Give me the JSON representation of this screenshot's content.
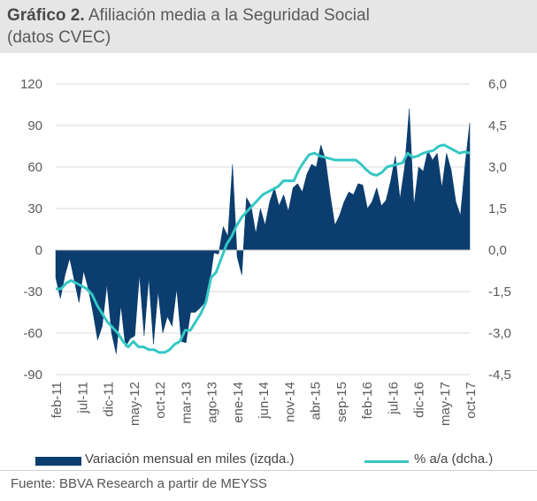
{
  "header": {
    "title_bold": "Gráfico 2.",
    "title_rest": " Afiliación media a la Seguridad Social",
    "subtitle": "(datos CVEC)"
  },
  "footer": {
    "source": "Fuente: BBVA Research a partir de MEYSS"
  },
  "colors": {
    "area": "#0b3d6e",
    "line": "#35c7c4",
    "grid": "#d9d9d9",
    "axis_text": "#5a5a5a"
  },
  "chart_data": {
    "type": "area+line",
    "left_axis": {
      "ticks": [
        "120",
        "90",
        "60",
        "30",
        "0",
        "-30",
        "-60",
        "-90"
      ],
      "range": [
        -90,
        120
      ]
    },
    "right_axis": {
      "ticks": [
        "6,0",
        "4,5",
        "3,0",
        "1,5",
        "0,0",
        "-1,5",
        "-3,0",
        "-4,5"
      ],
      "range": [
        -4.5,
        6.0
      ]
    },
    "x_labels": [
      "feb-11",
      "jul-11",
      "dic-11",
      "may-12",
      "oct-12",
      "mar-13",
      "ago-13",
      "ene-14",
      "jun-14",
      "nov-14",
      "abr-15",
      "sep-15",
      "feb-16",
      "jul-16",
      "dic-16",
      "may-17",
      "oct-17"
    ],
    "grid": true,
    "legend_position": "bottom",
    "series": [
      {
        "name": "Variación mensual en miles (izqda.)",
        "kind": "area",
        "axis": "left",
        "values": [
          -20,
          -35,
          -18,
          -6,
          -22,
          -38,
          -15,
          -28,
          -45,
          -65,
          -55,
          -25,
          -60,
          -75,
          -40,
          -70,
          -64,
          -62,
          -18,
          -62,
          -20,
          -68,
          -30,
          -60,
          -48,
          -55,
          -28,
          -66,
          -67,
          -45,
          -45,
          -42,
          -38,
          -26,
          -2,
          -3,
          17,
          10,
          62,
          -5,
          -18,
          38,
          32,
          12,
          30,
          18,
          35,
          45,
          32,
          40,
          28,
          45,
          48,
          42,
          55,
          62,
          60,
          76,
          65,
          40,
          18,
          25,
          35,
          42,
          40,
          48,
          47,
          30,
          35,
          45,
          32,
          36,
          50,
          68,
          37,
          60,
          102,
          32,
          60,
          57,
          72,
          65,
          70,
          45,
          70,
          58,
          35,
          25,
          62,
          92
        ]
      },
      {
        "name": "% a/a (dcha.)",
        "kind": "line",
        "axis": "right",
        "values": [
          -1.4,
          -1.4,
          -1.2,
          -1.1,
          -1.2,
          -1.3,
          -1.4,
          -1.6,
          -2.0,
          -2.3,
          -2.6,
          -2.8,
          -3.0,
          -3.3,
          -3.5,
          -3.3,
          -3.5,
          -3.5,
          -3.6,
          -3.6,
          -3.7,
          -3.7,
          -3.6,
          -3.4,
          -3.3,
          -2.9,
          -2.9,
          -2.6,
          -2.3,
          -1.9,
          -1.0,
          -0.8,
          -0.3,
          0.2,
          0.5,
          0.9,
          1.2,
          1.4,
          1.6,
          1.8,
          2.0,
          2.1,
          2.2,
          2.3,
          2.5,
          2.5,
          2.5,
          2.9,
          3.2,
          3.45,
          3.5,
          3.4,
          3.35,
          3.3,
          3.25,
          3.25,
          3.25,
          3.25,
          3.25,
          3.1,
          2.9,
          2.75,
          2.7,
          2.8,
          3.0,
          3.05,
          3.1,
          3.15,
          3.5,
          3.35,
          3.4,
          3.5,
          3.55,
          3.6,
          3.75,
          3.8,
          3.7,
          3.6,
          3.5,
          3.55,
          3.5
        ]
      }
    ]
  }
}
